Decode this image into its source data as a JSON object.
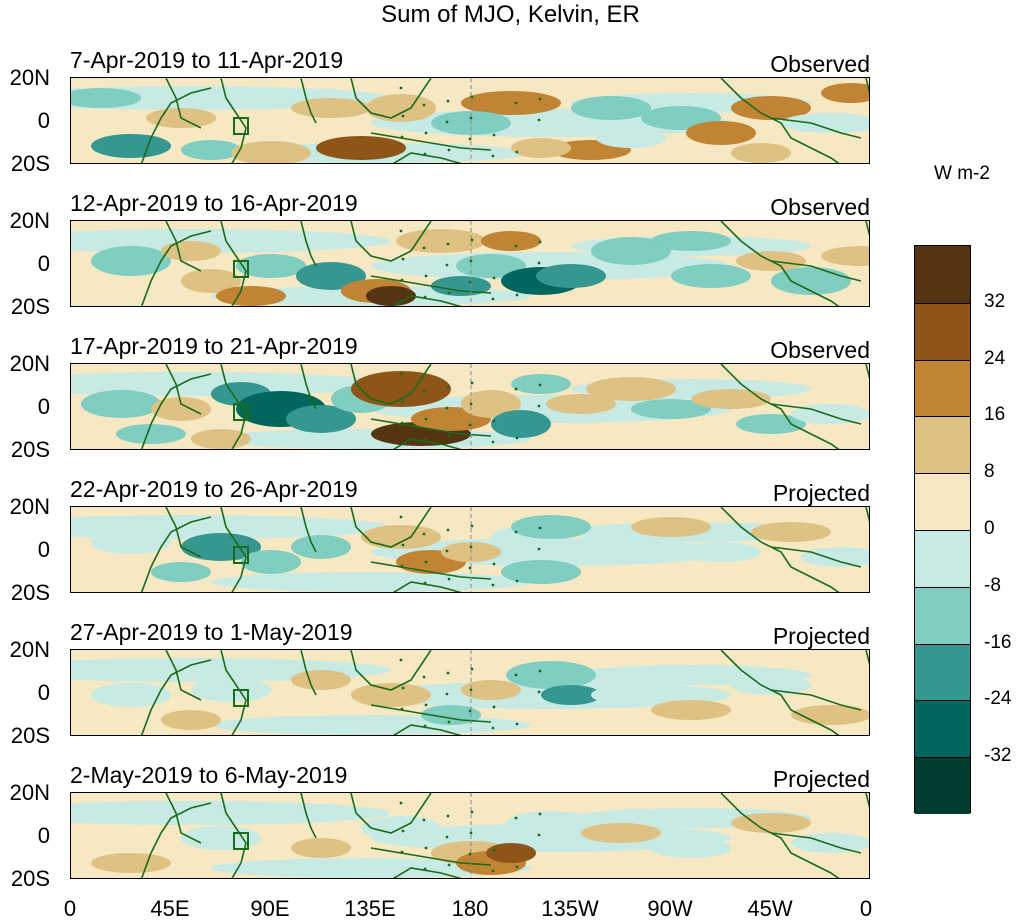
{
  "title": "Sum of MJO, Kelvin, ER",
  "colorbar": {
    "unit": "W m-2",
    "labels": [
      "32",
      "24",
      "16",
      "8",
      "0",
      "-8",
      "-16",
      "-24",
      "-32"
    ],
    "colors": [
      "#553412",
      "#8e5518",
      "#c08434",
      "#dfc283",
      "#f6e8c3",
      "#c7eae5",
      "#80cdc1",
      "#35978f",
      "#01665e",
      "#003c30"
    ]
  },
  "xaxis": {
    "ticks": [
      "0",
      "45E",
      "90E",
      "135E",
      "180",
      "135W",
      "90W",
      "45W",
      "0"
    ]
  },
  "yaxis": {
    "ticks": [
      "20N",
      "0",
      "20S"
    ]
  },
  "panels": [
    {
      "date": "7-Apr-2019 to 11-Apr-2019",
      "kind": "Observed"
    },
    {
      "date": "12-Apr-2019 to 16-Apr-2019",
      "kind": "Observed"
    },
    {
      "date": "17-Apr-2019 to 21-Apr-2019",
      "kind": "Observed"
    },
    {
      "date": "22-Apr-2019 to 26-Apr-2019",
      "kind": "Projected"
    },
    {
      "date": "27-Apr-2019 to 1-May-2019",
      "kind": "Projected"
    },
    {
      "date": "2-May-2019 to 6-May-2019",
      "kind": "Projected"
    }
  ]
}
